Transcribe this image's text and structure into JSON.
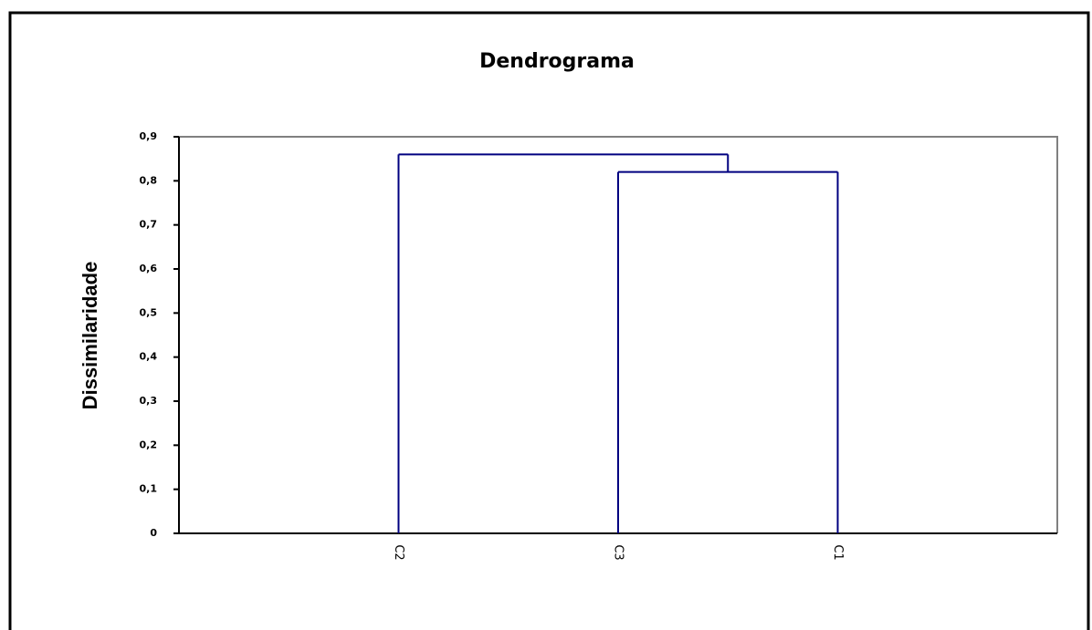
{
  "chart_data": {
    "type": "dendrogram",
    "title": "Dendrograma",
    "y_label": "Dissimilaridade",
    "tree": {
      "height": 0.86,
      "children": [
        "C2",
        {
          "height": 0.82,
          "children": [
            "C3",
            "C1"
          ]
        }
      ]
    },
    "ylim": [
      0,
      0.9
    ],
    "yticks": [
      0,
      {
        "value": 0.1,
        "label": "0,1"
      },
      {
        "value": 0.2,
        "label": "0,2"
      },
      {
        "value": 0.3,
        "label": "0,3"
      },
      {
        "value": 0.4,
        "label": "0,4"
      },
      {
        "value": 0.5,
        "label": "0,5"
      },
      {
        "value": 0.6,
        "label": "0,6"
      },
      {
        "value": 0.7,
        "label": "0,7"
      },
      {
        "value": 0.8,
        "label": "0,8"
      },
      {
        "value": 0.9,
        "label": "0,9"
      }
    ],
    "color": "#000080"
  }
}
